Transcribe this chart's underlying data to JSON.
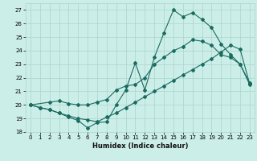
{
  "xlabel": "Humidex (Indice chaleur)",
  "bg_color": "#cceee8",
  "grid_color": "#aad4cc",
  "line_color": "#1a6b60",
  "xlim": [
    -0.5,
    23.5
  ],
  "ylim": [
    18,
    27.5
  ],
  "yticks": [
    18,
    19,
    20,
    21,
    22,
    23,
    24,
    25,
    26,
    27
  ],
  "xticks": [
    0,
    1,
    2,
    3,
    4,
    5,
    6,
    7,
    8,
    9,
    10,
    11,
    12,
    13,
    14,
    15,
    16,
    17,
    18,
    19,
    20,
    21,
    22,
    23
  ],
  "line1_x": [
    0,
    1,
    2,
    3,
    4,
    5,
    6,
    7,
    8,
    9,
    10,
    11,
    12,
    13,
    14,
    15,
    16,
    17,
    18,
    19,
    20,
    21,
    22,
    23
  ],
  "line1_y": [
    20.0,
    19.8,
    19.65,
    19.4,
    19.1,
    18.85,
    18.3,
    18.7,
    18.75,
    20.0,
    21.1,
    23.1,
    21.1,
    23.5,
    25.3,
    27.0,
    26.5,
    26.8,
    26.3,
    25.7,
    24.5,
    23.7,
    23.0,
    21.5
  ],
  "line2_x": [
    0,
    2,
    3,
    4,
    5,
    6,
    7,
    8,
    9,
    10,
    11,
    12,
    13,
    14,
    15,
    16,
    17,
    18,
    19,
    20,
    21,
    22,
    23
  ],
  "line2_y": [
    20.0,
    20.2,
    20.3,
    20.1,
    20.0,
    20.0,
    20.2,
    20.4,
    21.1,
    21.4,
    21.5,
    22.0,
    23.0,
    23.5,
    24.0,
    24.3,
    24.8,
    24.7,
    24.4,
    23.7,
    23.5,
    23.0,
    21.6
  ],
  "line3_x": [
    0,
    1,
    2,
    3,
    4,
    5,
    6,
    7,
    8,
    9,
    10,
    11,
    12,
    13,
    14,
    15,
    16,
    17,
    18,
    19,
    20,
    21,
    22,
    23
  ],
  "line3_y": [
    20.0,
    19.8,
    19.65,
    19.4,
    19.2,
    19.0,
    18.9,
    18.75,
    19.1,
    19.4,
    19.8,
    20.2,
    20.6,
    21.0,
    21.4,
    21.8,
    22.2,
    22.6,
    23.0,
    23.4,
    23.9,
    24.4,
    24.1,
    21.55
  ]
}
